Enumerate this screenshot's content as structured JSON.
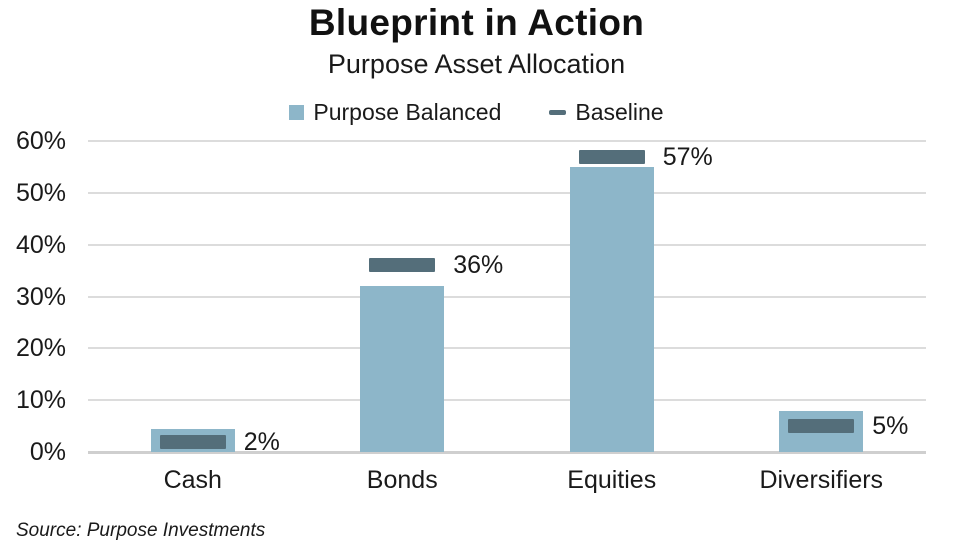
{
  "header": {
    "title": "Blueprint in Action",
    "subtitle": "Purpose Asset Allocation"
  },
  "legend": {
    "items": [
      {
        "label": "Purpose Balanced",
        "swatch": "square",
        "color": "#8db6c9"
      },
      {
        "label": "Baseline",
        "swatch": "dash",
        "color": "#546e7a"
      }
    ]
  },
  "footer": {
    "source": "Source: Purpose Investments"
  },
  "colors": {
    "bar": "#8db6c9",
    "baseline_marker": "#546e7a",
    "gridline": "#dcdcdc",
    "text": "#1a1a1a"
  },
  "chart_data": {
    "type": "bar",
    "title": "Blueprint in Action",
    "subtitle": "Purpose Asset Allocation",
    "categories": [
      "Cash",
      "Bonds",
      "Equities",
      "Diversifiers"
    ],
    "series": [
      {
        "name": "Purpose Balanced",
        "render": "bar",
        "color": "#8db6c9",
        "values": [
          4.5,
          32,
          55,
          8
        ]
      },
      {
        "name": "Baseline",
        "render": "dash-marker",
        "color": "#546e7a",
        "values": [
          2,
          36,
          57,
          5
        ],
        "data_labels": [
          "2%",
          "36%",
          "57%",
          "5%"
        ]
      }
    ],
    "xlabel": "",
    "ylabel": "",
    "ylim": [
      0,
      60
    ],
    "yticks": [
      0,
      10,
      20,
      30,
      40,
      50,
      60
    ],
    "ytick_labels": [
      "0%",
      "10%",
      "20%",
      "30%",
      "40%",
      "50%",
      "60%"
    ],
    "grid": true,
    "legend_position": "top",
    "data_labels_series": "Baseline",
    "source": "Source: Purpose Investments"
  }
}
